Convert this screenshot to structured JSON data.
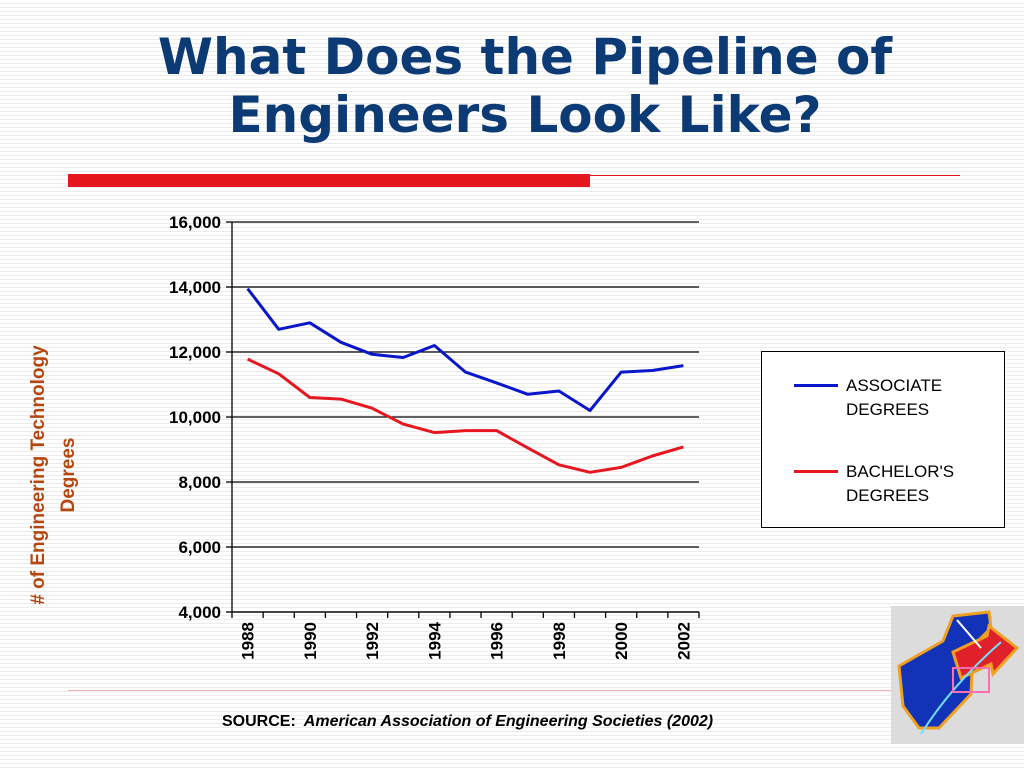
{
  "slide": {
    "title_line1": "What Does the Pipeline of",
    "title_line2": "Engineers Look Like?",
    "source_label": "SOURCE:",
    "source_text": "American Association of Engineering Societies (2002)",
    "colors": {
      "title": "#0b3a75",
      "accent": "#e5171f"
    }
  },
  "chart_data": {
    "type": "line",
    "ylabel_line1": "# of  Engineering Technology",
    "ylabel_line2": "Degrees",
    "xlabel": "",
    "ylim": [
      4000,
      16000
    ],
    "yticks": [
      4000,
      6000,
      8000,
      10000,
      12000,
      14000,
      16000
    ],
    "ytick_labels": [
      "4,000",
      "6,000",
      "8,000",
      "10,000",
      "12,000",
      "14,000",
      "16,000"
    ],
    "x": [
      1988,
      1989,
      1990,
      1991,
      1992,
      1993,
      1994,
      1995,
      1996,
      1997,
      1998,
      1999,
      2000,
      2001,
      2002
    ],
    "xtick_labels": [
      "1988",
      "1990",
      "1992",
      "1994",
      "1996",
      "1998",
      "2000",
      "2002"
    ],
    "grid": true,
    "legend_position": "right",
    "series": [
      {
        "name": "ASSOCIATE DEGREES",
        "color": "#0a16c9",
        "values": [
          13950,
          12700,
          12900,
          12300,
          11930,
          11830,
          12200,
          11380,
          11050,
          10700,
          10800,
          10200,
          11380,
          11430,
          11580
        ]
      },
      {
        "name": "BACHELOR'S DEGREES",
        "color": "#e5171f",
        "values": [
          11780,
          11330,
          10600,
          10550,
          10270,
          9780,
          9520,
          9580,
          9580,
          9050,
          8530,
          8300,
          8450,
          8800,
          9080
        ]
      }
    ]
  }
}
